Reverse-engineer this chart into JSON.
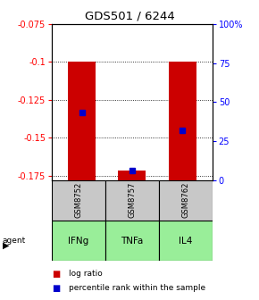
{
  "title": "GDS501 / 6244",
  "samples": [
    "GSM8752",
    "GSM8757",
    "GSM8762"
  ],
  "agents": [
    "IFNg",
    "TNFa",
    "IL4"
  ],
  "log_ratios": [
    -0.1,
    -0.172,
    -0.1
  ],
  "percentile_ranks": [
    43,
    6,
    32
  ],
  "ylim_left": [
    -0.178,
    -0.075
  ],
  "ylim_right": [
    0,
    100
  ],
  "yticks_left": [
    -0.175,
    -0.15,
    -0.125,
    -0.1,
    -0.075
  ],
  "ytick_labels_left": [
    "-0.175",
    "-0.15",
    "-0.125",
    "-0.1",
    "-0.075"
  ],
  "yticks_right": [
    0,
    25,
    50,
    75,
    100
  ],
  "ytick_labels_right": [
    "0",
    "25",
    "50",
    "75",
    "100%"
  ],
  "bar_color": "#cc0000",
  "percentile_color": "#0000cc",
  "sample_bg_color": "#c8c8c8",
  "agent_bg_color": "#99ee99",
  "legend_items": [
    "log ratio",
    "percentile rank within the sample"
  ],
  "bar_width": 0.55,
  "bar_bottom": -0.178,
  "figsize": [
    2.9,
    3.36
  ],
  "dpi": 100
}
